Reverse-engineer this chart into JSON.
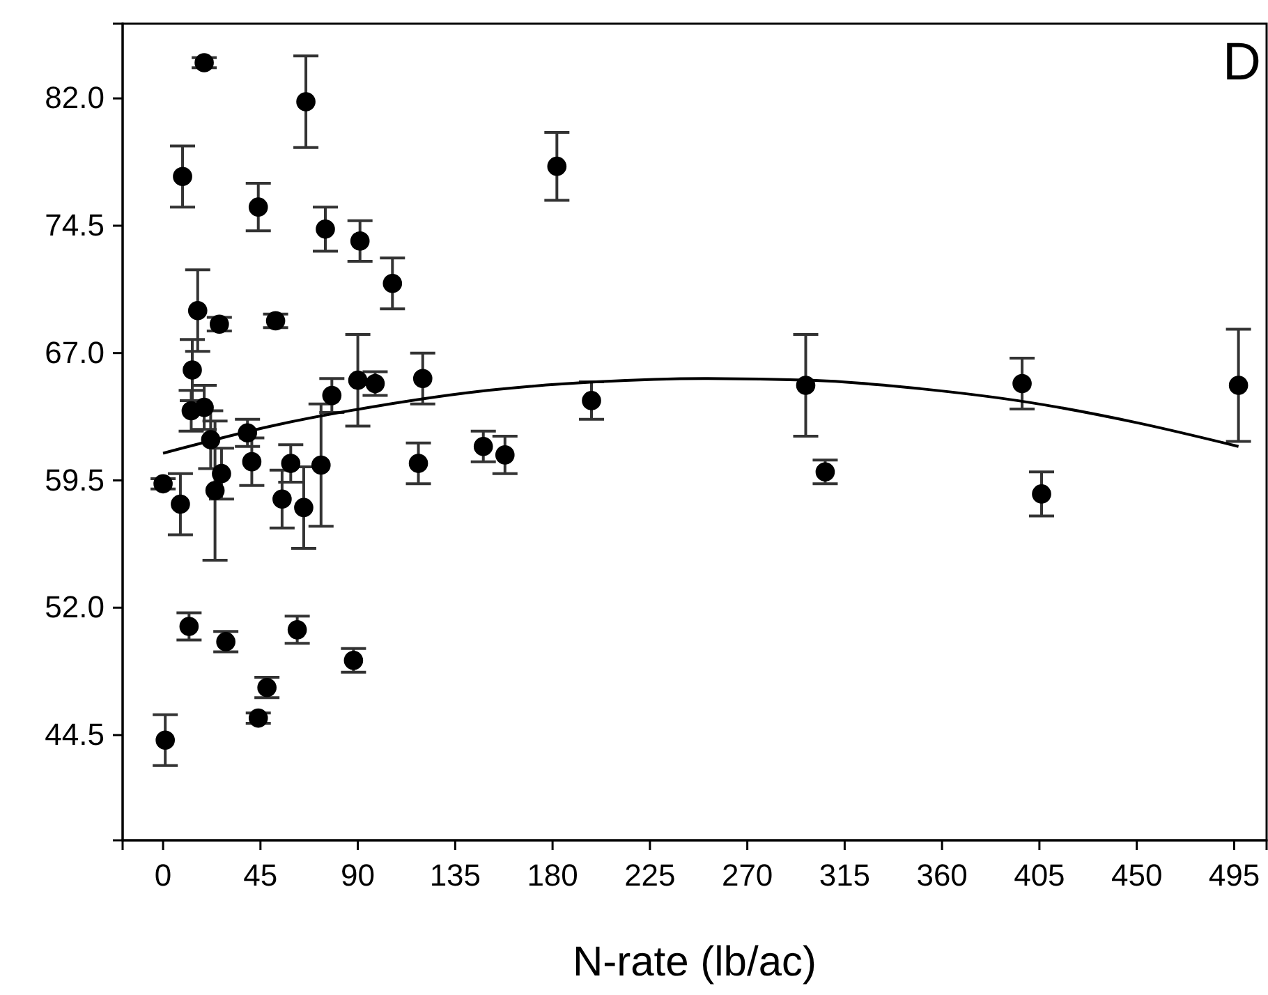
{
  "chart_data": {
    "type": "scatter",
    "xlabel": "N-rate (lb/ac)",
    "annotations": [
      "D"
    ],
    "grid": false,
    "xlim": [
      -18.7,
      510
    ],
    "xticks": [
      0,
      45,
      90,
      135,
      180,
      225,
      270,
      315,
      360,
      405,
      450,
      495
    ],
    "ylim": [
      38.3,
      86.4
    ],
    "yticks": [
      {
        "value": 44.5,
        "label": "44.5"
      },
      {
        "value": 52,
        "label": "52.0"
      },
      {
        "value": 59.5,
        "label": "59.5"
      },
      {
        "value": 67,
        "label": "67.0"
      },
      {
        "value": 74.5,
        "label": "74.5"
      },
      {
        "value": 82,
        "label": "82.0"
      }
    ],
    "series": [
      {
        "color": "#000000",
        "marker": "circle",
        "x": [
          0,
          1,
          8,
          9,
          12,
          13.5,
          13,
          16,
          19,
          19,
          22,
          24,
          26,
          27,
          29,
          39,
          41,
          44,
          44,
          48,
          52,
          55,
          59,
          62,
          65,
          66,
          73,
          75,
          78,
          88,
          90,
          91,
          98,
          106,
          118,
          120,
          148,
          158,
          182,
          198,
          297,
          306,
          397,
          406,
          497
        ],
        "values": [
          59.3,
          44.2,
          58.1,
          77.4,
          50.9,
          66.0,
          63.6,
          69.5,
          63.8,
          84.1,
          61.9,
          58.9,
          68.7,
          59.9,
          50.0,
          62.3,
          60.6,
          45.5,
          75.6,
          47.3,
          68.9,
          58.4,
          60.5,
          50.7,
          57.9,
          81.8,
          60.4,
          74.3,
          64.5,
          48.9,
          65.4,
          73.6,
          65.2,
          71.1,
          60.5,
          65.5,
          61.5,
          61.0,
          78.0,
          64.2,
          65.1,
          60.0,
          65.2,
          58.7,
          65.1
        ],
        "errors": [
          0.3,
          1.5,
          1.8,
          1.8,
          0.8,
          1.8,
          1.2,
          2.4,
          1.3,
          0.3,
          1.7,
          4.1,
          0.4,
          1.5,
          0.6,
          0.8,
          1.4,
          0.3,
          1.4,
          0.6,
          0.4,
          1.7,
          1.1,
          0.8,
          2.4,
          2.7,
          3.6,
          1.3,
          1.0,
          0.7,
          2.7,
          1.2,
          0.7,
          1.5,
          1.2,
          1.5,
          0.9,
          1.1,
          2.0,
          1.1,
          3.0,
          0.7,
          1.5,
          1.3,
          3.3
        ]
      },
      {
        "type": "line",
        "color": "#000000",
        "line_style": "solid",
        "x": [
          0,
          50,
          100,
          150,
          200,
          250,
          300,
          350,
          400,
          450,
          497
        ],
        "values": [
          61.1,
          62.7,
          63.9,
          64.8,
          65.3,
          65.5,
          65.4,
          64.9,
          64.1,
          62.9,
          61.5
        ]
      }
    ]
  }
}
